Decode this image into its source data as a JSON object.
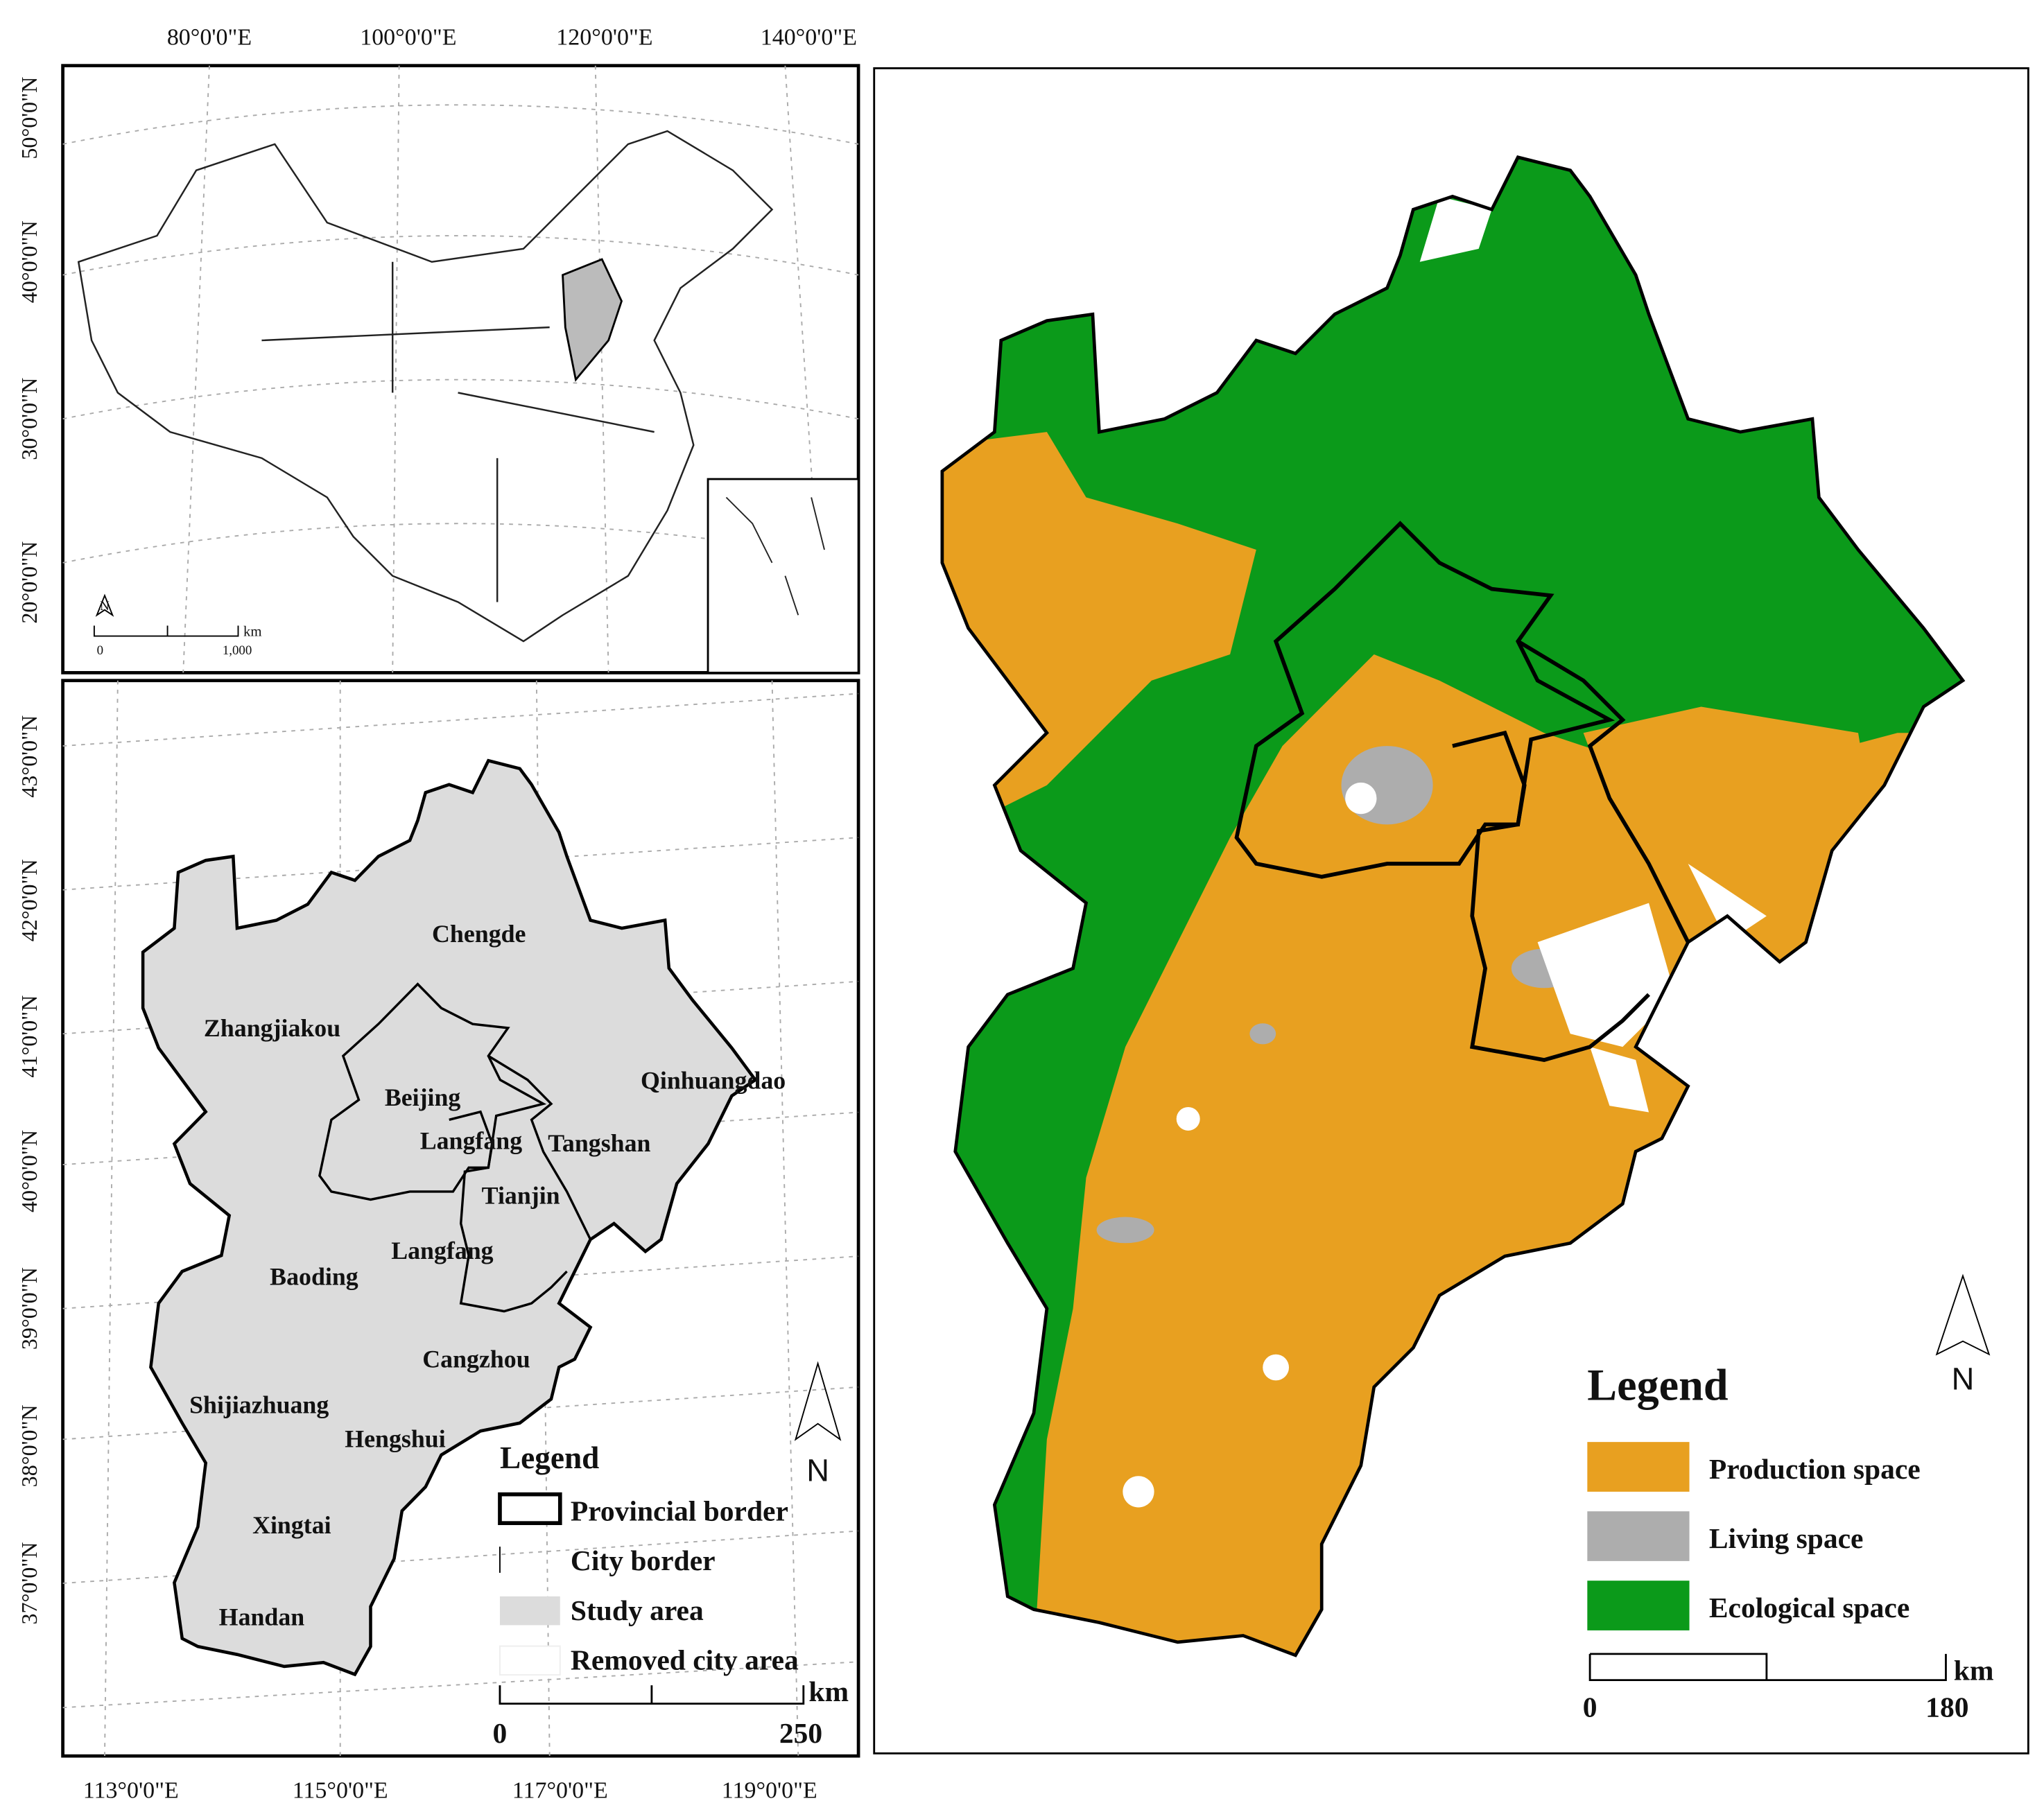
{
  "inset_map": {
    "lon_labels": [
      "80°0'0\"E",
      "100°0'0\"E",
      "120°0'0\"E",
      "140°0'0\"E"
    ],
    "lat_labels": [
      "50°0'0\"N",
      "40°0'0\"N",
      "30°0'0\"N",
      "20°0'0\"N"
    ],
    "north": "N",
    "scale": {
      "unit": "km",
      "ticks": [
        "0",
        "1,000"
      ]
    }
  },
  "study_map": {
    "lon_labels": [
      "113°0'0\"E",
      "115°0'0\"E",
      "117°0'0\"E",
      "119°0'0\"E"
    ],
    "lat_labels": [
      "43°0'0\"N",
      "42°0'0\"N",
      "41°0'0\"N",
      "40°0'0\"N",
      "39°0'0\"N",
      "38°0'0\"N",
      "37°0'0\"N"
    ],
    "cities": [
      "Chengde",
      "Zhangjiakou",
      "Beijing",
      "Qinhuangdao",
      "Langfang",
      "Tangshan",
      "Tianjin",
      "Langfang",
      "Baoding",
      "Cangzhou",
      "Shijiazhuang",
      "Hengshui",
      "Xingtai",
      "Handan"
    ],
    "legend": {
      "title": "Legend",
      "items": [
        "Provincial border",
        "City border",
        "Study area",
        "Removed city area"
      ]
    },
    "north": "N",
    "scale": {
      "unit": "km",
      "ticks": [
        "0",
        "250"
      ]
    }
  },
  "land_use_map": {
    "legend": {
      "title": "Legend",
      "items": [
        {
          "label": "Production space",
          "color": "#e8a020"
        },
        {
          "label": "Living space",
          "color": "#adadad"
        },
        {
          "label": "Ecological space",
          "color": "#0b9a1a"
        }
      ]
    },
    "north": "N",
    "scale": {
      "unit": "km",
      "ticks": [
        "0",
        "180"
      ]
    }
  }
}
